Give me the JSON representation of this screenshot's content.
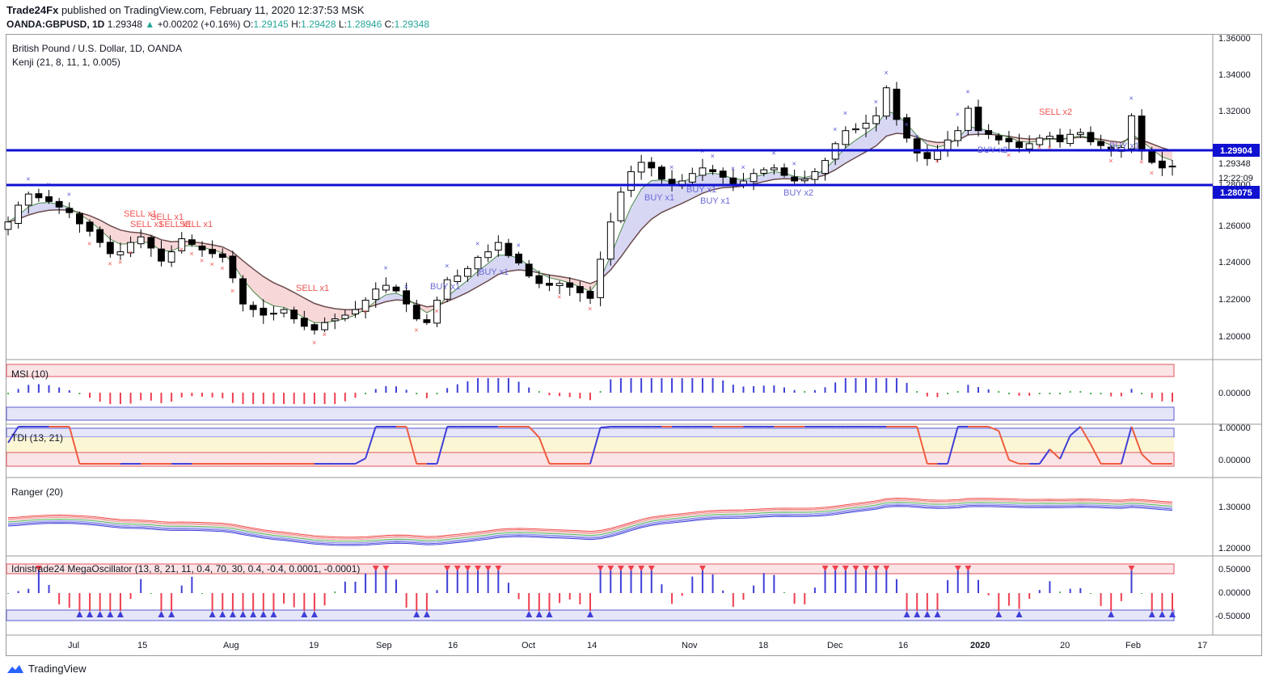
{
  "header": {
    "publisher": "Trade24Fx",
    "published_text": "published on TradingView.com, February 11, 2020 12:37:53 MSK",
    "symbol": "OANDA:GBPUSD, 1D",
    "last": "1.29348",
    "change": "+0.00202 (+0.16%)",
    "o_label": "O:",
    "o": "1.29145",
    "h_label": "H:",
    "h": "1.29428",
    "l_label": "L:",
    "l": "1.28946",
    "c_label": "C:",
    "c": "1.29348"
  },
  "pane_main": {
    "title": "British Pound / U.S. Dollar, 1D, OANDA",
    "study": "Kenji (21, 8, 11, 1, 0.005)",
    "price_ticks": [
      "1.36000",
      "1.34000",
      "1.32000",
      "1.30000",
      "1.28000",
      "1.26000",
      "1.24000",
      "1.22000",
      "1.20000"
    ],
    "tags": {
      "line_upper": "1.29904",
      "last": "1.29348",
      "countdown": "12:22:09",
      "line_lower": "1.28075"
    },
    "signals": [
      "SELL x1",
      "SELL x1",
      "SELL x1",
      "SELL x1",
      "SELL x1",
      "SELL x1",
      "BUY x1",
      "BUY x1",
      "BUY x1",
      "BUY x1",
      "BUY x1",
      "BUY x2",
      "SELL x2",
      "BUY x2",
      "BUY x1"
    ]
  },
  "pane_msi": {
    "title": "MSI (10)",
    "ticks": [
      "0.00000"
    ]
  },
  "pane_tdi": {
    "title": "TDI (13, 21)",
    "ticks": [
      "1.00000",
      "0.00000"
    ]
  },
  "pane_ranger": {
    "title": "Ranger (20)",
    "ticks": [
      "1.30000",
      "1.20000"
    ]
  },
  "pane_osc": {
    "title": "Idnistrade24 MegaOscillator (13, 8, 21, 11, 0.4, 70, 30, 0.4, -0.4, 0.0001, -0.0001)",
    "ticks": [
      "0.50000",
      "0.00000",
      "-0.50000"
    ]
  },
  "x_ticks": [
    "Jul",
    "15",
    "Aug",
    "19",
    "Sep",
    "16",
    "Oct",
    "14",
    "Nov",
    "18",
    "Dec",
    "16",
    "2020",
    "20",
    "Feb",
    "17"
  ],
  "footer": {
    "brand": "TradingView"
  },
  "chart_data": {
    "type": "candlestick",
    "x_ticks": [
      "Jul",
      "15",
      "Aug",
      "19",
      "Sep",
      "16",
      "Oct",
      "14",
      "Nov",
      "18",
      "Dec",
      "16",
      "2020",
      "20",
      "Feb",
      "17"
    ],
    "ylim": [
      1.19,
      1.36
    ],
    "horizontal_lines": [
      1.29904,
      1.28075
    ],
    "series": [
      {
        "name": "GBPUSD",
        "close": [
          1.263,
          1.272,
          1.278,
          1.276,
          1.274,
          1.271,
          1.268,
          1.262,
          1.258,
          1.252,
          1.246,
          1.247,
          1.252,
          1.255,
          1.249,
          1.242,
          1.247,
          1.254,
          1.251,
          1.248,
          1.246,
          1.244,
          1.233,
          1.219,
          1.216,
          1.213,
          1.214,
          1.216,
          1.211,
          1.207,
          1.205,
          1.209,
          1.211,
          1.213,
          1.216,
          1.221,
          1.227,
          1.229,
          1.226,
          1.219,
          1.211,
          1.209,
          1.221,
          1.232,
          1.234,
          1.238,
          1.244,
          1.247,
          1.252,
          1.245,
          1.241,
          1.234,
          1.23,
          1.229,
          1.23,
          1.228,
          1.225,
          1.222,
          1.243,
          1.263,
          1.279,
          1.29,
          1.295,
          1.292,
          1.286,
          1.283,
          1.285,
          1.289,
          1.292,
          1.29,
          1.287,
          1.283,
          1.285,
          1.289,
          1.291,
          1.292,
          1.288,
          1.285,
          1.286,
          1.29,
          1.296,
          1.305,
          1.312,
          1.313,
          1.316,
          1.32,
          1.335,
          1.318,
          1.308,
          1.3,
          1.297,
          1.301,
          1.307,
          1.312,
          1.324,
          1.312,
          1.31,
          1.307,
          1.306,
          1.303,
          1.305,
          1.308,
          1.309,
          1.306,
          1.31,
          1.311,
          1.306,
          1.304,
          1.301,
          1.303,
          1.32,
          1.301,
          1.295,
          1.292,
          1.293
        ]
      }
    ],
    "panes": [
      {
        "name": "MSI (10)",
        "ticks": [
          0.0
        ]
      },
      {
        "name": "TDI (13, 21)",
        "ticks": [
          1.0,
          0.0
        ]
      },
      {
        "name": "Ranger (20)",
        "ticks": [
          1.3,
          1.2
        ]
      },
      {
        "name": "Idnistrade24 MegaOscillator (13, 8, 21, 11, 0.4, 70, 30, 0.4, -0.4, 0.0001, -0.0001)",
        "ticks": [
          0.5,
          0.0,
          -0.5
        ]
      }
    ]
  }
}
